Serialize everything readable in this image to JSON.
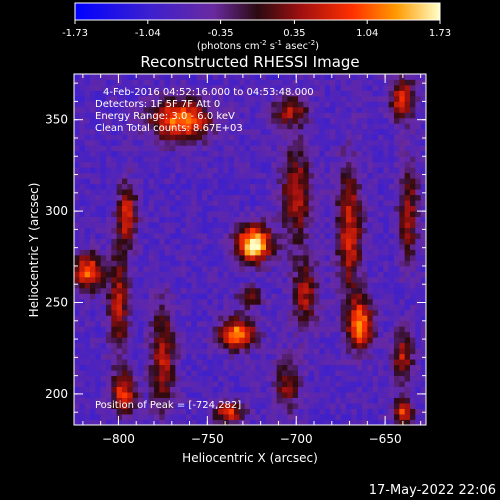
{
  "colorbar": {
    "tick_labels": [
      "-1.73",
      "-1.04",
      "-0.35",
      "0.35",
      "1.04",
      "1.73"
    ],
    "tick_values": [
      -1.73,
      -1.04,
      -0.35,
      0.35,
      1.04,
      1.73
    ],
    "range": [
      -1.73,
      1.73
    ],
    "units_prefix": "(photons cm",
    "units_exp1": "-2",
    "units_mid": " s",
    "units_exp2": "-1",
    "units_mid2": " asec",
    "units_exp3": "-2",
    "units_suffix": ")"
  },
  "chart_data": {
    "type": "heatmap",
    "title": "Reconstructed RHESSI Image",
    "xlabel": "Heliocentric X (arcsec)",
    "ylabel": "Heliocentric Y (arcsec)",
    "xlim": [
      -825,
      -627
    ],
    "ylim": [
      183,
      375
    ],
    "xticks": [
      -800,
      -750,
      -700,
      -650
    ],
    "yticks": [
      200,
      250,
      300,
      350
    ],
    "xtick_labels": [
      "−800",
      "−750",
      "−700",
      "−650"
    ],
    "ytick_labels": [
      "200",
      "250",
      "300",
      "350"
    ],
    "annotations": {
      "time_range": "4-Feb-2016 04:52:16.000 to 04:53:48.000",
      "detectors": "Detectors: 1F 5F 7F  Att 0",
      "energy": "Energy Range: 3.0 - 6.0 keV",
      "clean": "Clean     Total counts: 8.67E+03",
      "peak": "Position of Peak = [-724,282]"
    },
    "peak_position": [
      -724,
      282
    ],
    "sources": [
      {
        "x": -724,
        "y": 282,
        "sx": 7,
        "sy": 7,
        "amp": 1.0
      },
      {
        "x": -733,
        "y": 233,
        "sx": 7,
        "sy": 6,
        "amp": 0.8
      },
      {
        "x": -726,
        "y": 253,
        "sx": 5,
        "sy": 4,
        "amp": 0.45
      },
      {
        "x": -738,
        "y": 190,
        "sx": 6,
        "sy": 4,
        "amp": 0.6
      },
      {
        "x": -817,
        "y": 267,
        "sx": 6,
        "sy": 7,
        "amp": 0.7
      },
      {
        "x": -795,
        "y": 298,
        "sx": 4,
        "sy": 12,
        "amp": 0.55
      },
      {
        "x": -800,
        "y": 250,
        "sx": 4,
        "sy": 20,
        "amp": 0.5
      },
      {
        "x": -797,
        "y": 200,
        "sx": 5,
        "sy": 8,
        "amp": 0.6
      },
      {
        "x": -765,
        "y": 350,
        "sx": 12,
        "sy": 8,
        "amp": 0.75
      },
      {
        "x": -775,
        "y": 220,
        "sx": 5,
        "sy": 20,
        "amp": 0.5
      },
      {
        "x": -700,
        "y": 310,
        "sx": 6,
        "sy": 18,
        "amp": 0.5
      },
      {
        "x": -695,
        "y": 255,
        "sx": 5,
        "sy": 14,
        "amp": 0.45
      },
      {
        "x": -703,
        "y": 355,
        "sx": 7,
        "sy": 6,
        "amp": 0.45
      },
      {
        "x": -705,
        "y": 205,
        "sx": 5,
        "sy": 10,
        "amp": 0.4
      },
      {
        "x": -670,
        "y": 290,
        "sx": 5,
        "sy": 25,
        "amp": 0.55
      },
      {
        "x": -664,
        "y": 238,
        "sx": 5,
        "sy": 10,
        "amp": 0.75
      },
      {
        "x": -640,
        "y": 362,
        "sx": 5,
        "sy": 8,
        "amp": 0.6
      },
      {
        "x": -637,
        "y": 300,
        "sx": 4,
        "sy": 20,
        "amp": 0.45
      },
      {
        "x": -640,
        "y": 220,
        "sx": 4,
        "sy": 10,
        "amp": 0.5
      },
      {
        "x": -640,
        "y": 190,
        "sx": 4,
        "sy": 5,
        "amp": 0.6
      }
    ]
  },
  "footer": {
    "date": "17-May-2022 22:06"
  }
}
